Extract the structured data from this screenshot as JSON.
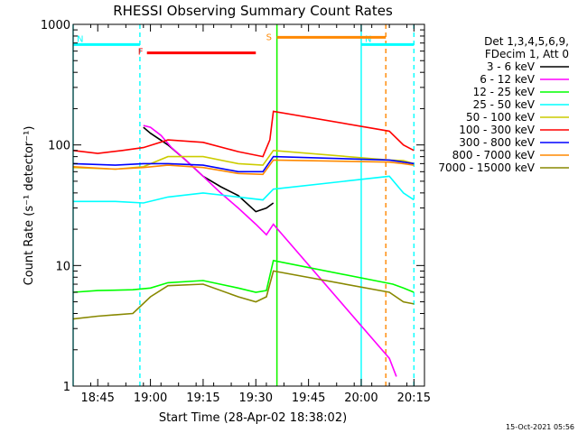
{
  "chart_data": {
    "type": "line",
    "title": "RHESSI Observing Summary Count Rates",
    "xlabel": "Start Time (28-Apr-02 18:38:02)",
    "ylabel": "Count Rate (s⁻¹ detector⁻¹)",
    "x_unit": "UT time (HH:MM)",
    "xlim": [
      "18:38",
      "20:18"
    ],
    "ylim": [
      1,
      1000
    ],
    "yscale": "log",
    "x_ticks": [
      "18:45",
      "19:00",
      "19:15",
      "19:30",
      "19:45",
      "20:00",
      "20:15"
    ],
    "y_ticks": [
      "1",
      "10",
      "100",
      "1000"
    ],
    "grid": false,
    "legend_position": "right-outside",
    "legend_header": [
      "Det 1,3,4,5,6,9,",
      "FDecim 1, Att 0"
    ],
    "timestamp": "15-Oct-2021 05:56",
    "series": [
      {
        "name": "3 - 6 keV",
        "color": "#000000",
        "x": [
          "18:38",
          "18:50",
          "18:57",
          "18:58",
          "19:00",
          "19:05",
          "19:10",
          "19:15",
          "19:20",
          "19:25",
          "19:30",
          "19:33",
          "19:35",
          "20:10",
          "20:12",
          "20:15"
        ],
        "y": [
          null,
          null,
          null,
          140,
          125,
          100,
          75,
          55,
          45,
          38,
          28,
          30,
          33,
          null,
          null,
          null
        ]
      },
      {
        "name": "6 - 12 keV",
        "color": "#ff00ff",
        "x": [
          "18:58",
          "19:00",
          "19:03",
          "19:06",
          "19:10",
          "19:15",
          "19:20",
          "19:25",
          "19:30",
          "19:33",
          "19:35",
          "20:08",
          "20:10"
        ],
        "y": [
          145,
          140,
          120,
          95,
          75,
          55,
          40,
          30,
          22,
          18,
          22,
          1.7,
          1.2
        ]
      },
      {
        "name": "12 - 25 keV",
        "color": "#00ff00",
        "x": [
          "18:38",
          "18:45",
          "18:55",
          "19:00",
          "19:05",
          "19:15",
          "19:25",
          "19:30",
          "19:33",
          "19:35",
          "20:09",
          "20:12",
          "20:15"
        ],
        "y": [
          6,
          6.2,
          6.3,
          6.5,
          7.2,
          7.5,
          6.5,
          6,
          6.2,
          11,
          7,
          6.5,
          6
        ]
      },
      {
        "name": "25 - 50 keV",
        "color": "#00ffff",
        "x": [
          "18:38",
          "18:50",
          "18:58",
          "19:05",
          "19:15",
          "19:25",
          "19:32",
          "19:35",
          "20:08",
          "20:12",
          "20:15"
        ],
        "y": [
          34,
          34,
          33,
          37,
          40,
          37,
          35,
          43,
          55,
          40,
          35
        ]
      },
      {
        "name": "50 - 100 keV",
        "color": "#cccc00",
        "x": [
          "18:38",
          "18:50",
          "18:58",
          "19:05",
          "19:15",
          "19:25",
          "19:32",
          "19:35",
          "20:08",
          "20:12",
          "20:15"
        ],
        "y": [
          65,
          63,
          66,
          80,
          80,
          70,
          68,
          90,
          75,
          74,
          70
        ]
      },
      {
        "name": "100 - 300 keV",
        "color": "#ff0000",
        "x": [
          "18:38",
          "18:45",
          "18:52",
          "18:58",
          "19:05",
          "19:15",
          "19:25",
          "19:32",
          "19:34",
          "19:35",
          "20:08",
          "20:12",
          "20:15"
        ],
        "y": [
          90,
          85,
          90,
          95,
          110,
          105,
          88,
          80,
          110,
          190,
          130,
          100,
          90
        ]
      },
      {
        "name": "300 - 800 keV",
        "color": "#0000ff",
        "x": [
          "18:38",
          "18:50",
          "18:58",
          "19:05",
          "19:15",
          "19:25",
          "19:32",
          "19:35",
          "20:08",
          "20:12",
          "20:15"
        ],
        "y": [
          70,
          68,
          70,
          70,
          68,
          60,
          60,
          80,
          75,
          72,
          70
        ]
      },
      {
        "name": "800 - 7000 keV",
        "color": "#ff8800",
        "x": [
          "18:38",
          "18:50",
          "18:58",
          "19:05",
          "19:15",
          "19:25",
          "19:32",
          "19:35",
          "20:08",
          "20:12",
          "20:15"
        ],
        "y": [
          66,
          63,
          65,
          68,
          65,
          58,
          57,
          75,
          72,
          70,
          68
        ]
      },
      {
        "name": "7000 - 15000 keV",
        "color": "#888800",
        "x": [
          "18:38",
          "18:45",
          "18:55",
          "19:00",
          "19:05",
          "19:15",
          "19:25",
          "19:30",
          "19:33",
          "19:35",
          "20:08",
          "20:12",
          "20:15"
        ],
        "y": [
          3.6,
          3.8,
          4,
          5.5,
          6.8,
          7,
          5.5,
          5,
          5.5,
          9,
          6,
          5,
          4.8
        ]
      }
    ],
    "flag_bars": [
      {
        "label": "F",
        "color": "#ff0000",
        "start": "18:59",
        "end": "19:30",
        "level": 580
      },
      {
        "label": "N",
        "color": "#00ffff",
        "start": "18:38",
        "end": "18:57",
        "level": 680
      },
      {
        "label": "N",
        "color": "#00ffff",
        "start": "20:00",
        "end": "20:15",
        "level": 680
      },
      {
        "label": "S",
        "color": "#ff8800",
        "start": "19:36",
        "end": "20:07",
        "level": 780
      }
    ],
    "vertical_markers": [
      {
        "time": "18:38",
        "color": "#00ffff",
        "style": "solid"
      },
      {
        "time": "18:57",
        "color": "#00ffff",
        "style": "dashed"
      },
      {
        "time": "19:36",
        "color": "#ff8800",
        "style": "solid"
      },
      {
        "time": "19:36",
        "color": "#00ff00",
        "style": "solid"
      },
      {
        "time": "20:00",
        "color": "#00ffff",
        "style": "solid"
      },
      {
        "time": "20:07",
        "color": "#ff8800",
        "style": "dashed"
      },
      {
        "time": "20:15",
        "color": "#00ffff",
        "style": "dashed"
      }
    ]
  }
}
